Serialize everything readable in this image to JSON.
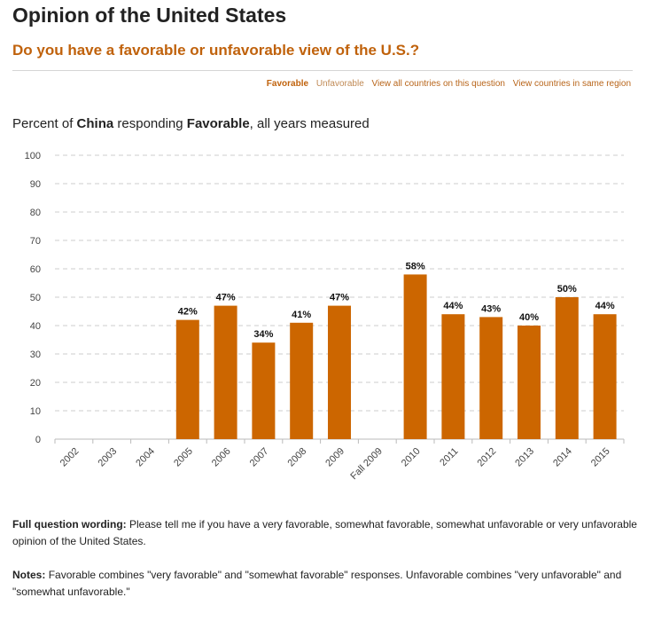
{
  "header": {
    "title": "Opinion of the United States",
    "question": "Do you have a favorable or unfavorable view of the U.S.?"
  },
  "subnav": {
    "favorable": "Favorable",
    "unfavorable": "Unfavorable",
    "all_countries": "View all countries on this question",
    "same_region": "View countries in same region"
  },
  "chart_heading": {
    "prefix": "Percent of",
    "country": "China",
    "middle": "responding",
    "response": "Favorable",
    "suffix": ", all years measured"
  },
  "chart_data": {
    "type": "bar",
    "title": "Percent of China responding Favorable, all years measured",
    "categories": [
      "2002",
      "2003",
      "2004",
      "2005",
      "2006",
      "2007",
      "2008",
      "2009",
      "Fall 2009",
      "2010",
      "2011",
      "2012",
      "2013",
      "2014",
      "2015"
    ],
    "values": [
      null,
      null,
      null,
      42,
      47,
      34,
      41,
      47,
      null,
      58,
      44,
      43,
      40,
      50,
      44
    ],
    "labels": [
      "",
      "",
      "",
      "42%",
      "47%",
      "34%",
      "41%",
      "47%",
      "",
      "58%",
      "44%",
      "43%",
      "40%",
      "50%",
      "44%"
    ],
    "yticks": [
      "0",
      "10",
      "20",
      "30",
      "40",
      "50",
      "60",
      "70",
      "80",
      "90",
      "100"
    ],
    "ylim": [
      0,
      100
    ],
    "xlabel": "",
    "ylabel": "",
    "grid": true,
    "bar_color": "#cc6600"
  },
  "footer": {
    "wording_label": "Full question wording:",
    "wording_text": "Please tell me if you have a very favorable, somewhat favorable, somewhat unfavorable or very unfavorable opinion of the United States.",
    "notes_label": "Notes:",
    "notes_text": "Favorable combines \"very favorable\" and \"somewhat favorable\" responses. Unfavorable combines \"very unfavorable\" and \"somewhat unfavorable.\""
  }
}
